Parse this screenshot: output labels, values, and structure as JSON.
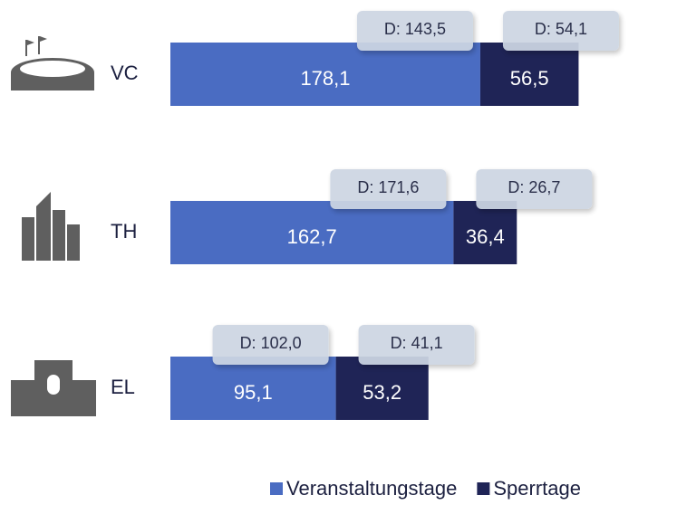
{
  "chart_data": {
    "type": "bar",
    "orientation": "horizontal",
    "stacked": true,
    "categories": [
      "VC",
      "TH",
      "EL"
    ],
    "series": [
      {
        "name": "Veranstaltungstage",
        "color": "#4a6cc2",
        "values": [
          178.1,
          162.7,
          95.1
        ],
        "value_labels": [
          "178,1",
          "162,7",
          "95,1"
        ],
        "annotations": [
          "D: 143,5",
          "D: 171,6",
          "D: 102,0"
        ]
      },
      {
        "name": "Sperrtage",
        "color": "#1f2456",
        "values": [
          56.5,
          36.4,
          53.2
        ],
        "value_labels": [
          "56,5",
          "36,4",
          "53,2"
        ],
        "annotations": [
          "D: 54,1",
          "D: 26,7",
          "D: 41,1"
        ]
      }
    ]
  }
}
